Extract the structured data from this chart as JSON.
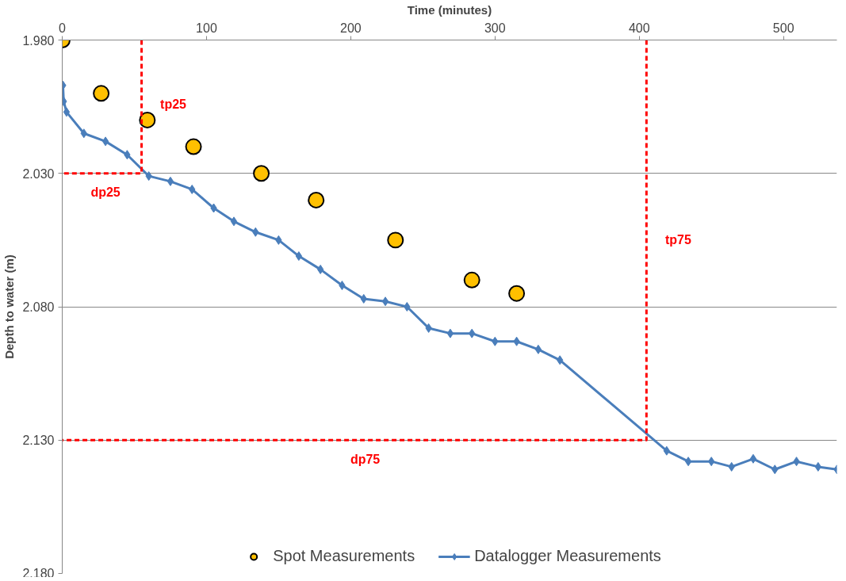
{
  "chart_data": {
    "type": "scatter",
    "xlabel": "Time (minutes)",
    "ylabel": "Depth to water (m)",
    "xlim": [
      0,
      537
    ],
    "xticks": [
      0,
      100,
      200,
      300,
      400,
      500
    ],
    "ylim": [
      2.18,
      1.98
    ],
    "yticks": [
      {
        "value": 1.98,
        "label": "1.980"
      },
      {
        "value": 2.03,
        "label": "2.030"
      },
      {
        "value": 2.08,
        "label": "2.080"
      },
      {
        "value": 2.13,
        "label": "2.130"
      },
      {
        "value": 2.18,
        "label": "2.180"
      }
    ],
    "grid": "y",
    "legend": "bottom",
    "series": [
      {
        "name": "Spot Measurements",
        "marker": "circle",
        "color": "#ffc000",
        "x": [
          0,
          27,
          59,
          91,
          138,
          176,
          231,
          284,
          315
        ],
        "values": [
          1.98,
          2.0,
          2.01,
          2.02,
          2.03,
          2.04,
          2.055,
          2.07,
          2.075
        ]
      },
      {
        "name": "Datalogger Measurements",
        "type": "line",
        "marker": "diamond",
        "line_style": "solid",
        "color": "#4a7ebb",
        "x": [
          0.5,
          1,
          3,
          15,
          30,
          45,
          60,
          75,
          90,
          105,
          119,
          134,
          150,
          164,
          179,
          194,
          209,
          224,
          239,
          254,
          269,
          284,
          300,
          315,
          330,
          345,
          419,
          434,
          450,
          464,
          479,
          494,
          509,
          524,
          537
        ],
        "values": [
          1.997,
          2.003,
          2.007,
          2.015,
          2.018,
          2.023,
          2.031,
          2.033,
          2.036,
          2.043,
          2.048,
          2.052,
          2.055,
          2.061,
          2.066,
          2.072,
          2.077,
          2.078,
          2.08,
          2.088,
          2.09,
          2.09,
          2.093,
          2.093,
          2.096,
          2.1,
          2.134,
          2.138,
          2.138,
          2.14,
          2.137,
          2.141,
          2.138,
          2.14,
          2.141
        ]
      },
      {
        "type": "line",
        "marker": "none",
        "line_style": "dashed",
        "color": "#ff0000",
        "x": [
          55,
          55,
          0
        ],
        "values": [
          1.98,
          2.03,
          2.03
        ]
      },
      {
        "type": "line",
        "marker": "none",
        "line_style": "dashed",
        "color": "#ff0000",
        "x": [
          405,
          405,
          0
        ],
        "values": [
          1.98,
          2.13,
          2.13
        ]
      }
    ],
    "annotations": [
      {
        "text": "tp25",
        "x": 55,
        "y": 2.004
      },
      {
        "text": "dp25",
        "x": 30,
        "y": 2.03
      },
      {
        "text": "tp75",
        "x": 405,
        "y": 2.055
      },
      {
        "text": "dp75",
        "x": 210,
        "y": 2.13
      }
    ]
  }
}
